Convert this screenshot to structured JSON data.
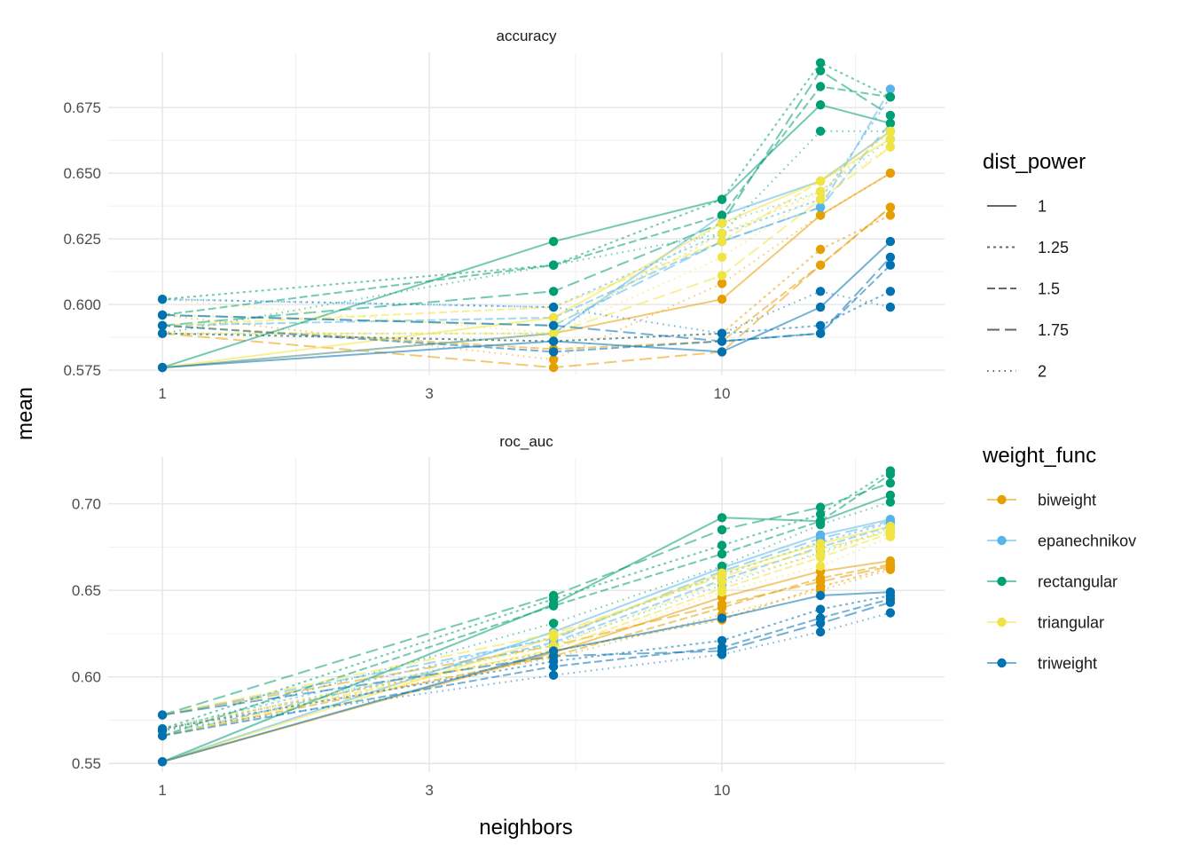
{
  "chart_data": {
    "type": "line",
    "x_label": "neighbors",
    "y_label": "mean",
    "x_scale": "log10",
    "x_ticks": [
      1,
      3,
      10
    ],
    "x_values": [
      1,
      5,
      10,
      15,
      20
    ],
    "grid": true,
    "legend_position": "right",
    "colors": {
      "biweight": "#E69F00",
      "epanechnikov": "#56B4E9",
      "rectangular": "#009E73",
      "triangular": "#F0E442",
      "triweight": "#0072B2"
    },
    "legend": {
      "dist_power": {
        "title": "dist_power",
        "items": [
          "1",
          "1.25",
          "1.5",
          "1.75",
          "2"
        ]
      },
      "weight_func": {
        "title": "weight_func",
        "items": [
          "biweight",
          "epanechnikov",
          "rectangular",
          "triangular",
          "triweight"
        ]
      }
    },
    "panels": [
      {
        "title": "accuracy",
        "ylim": [
          0.573,
          0.696
        ],
        "y_ticks": [
          0.575,
          0.6,
          0.625,
          0.65,
          0.675
        ],
        "y_tick_labels": [
          "0.575",
          "0.600",
          "0.625",
          "0.650",
          "0.675"
        ],
        "series": [
          {
            "weight_func": "biweight",
            "dist_power": "1",
            "values": [
              0.576,
              0.589,
              0.602,
              0.634,
              0.65
            ]
          },
          {
            "weight_func": "biweight",
            "dist_power": "1.25",
            "values": [
              0.589,
              0.586,
              0.589,
              0.621,
              0.634
            ]
          },
          {
            "weight_func": "biweight",
            "dist_power": "1.5",
            "values": [
              0.592,
              0.583,
              0.586,
              0.615,
              0.637
            ]
          },
          {
            "weight_func": "biweight",
            "dist_power": "1.75",
            "values": [
              0.589,
              0.576,
              0.582,
              0.615,
              0.637
            ]
          },
          {
            "weight_func": "biweight",
            "dist_power": "2",
            "values": [
              0.596,
              0.579,
              0.608,
              0.634,
              0.65
            ]
          },
          {
            "weight_func": "epanechnikov",
            "dist_power": "1",
            "values": [
              0.576,
              0.589,
              0.634,
              0.647,
              0.666
            ]
          },
          {
            "weight_func": "epanechnikov",
            "dist_power": "1.25",
            "values": [
              0.602,
              0.599,
              0.627,
              0.64,
              0.679
            ]
          },
          {
            "weight_func": "epanechnikov",
            "dist_power": "1.5",
            "values": [
              0.592,
              0.595,
              0.624,
              0.637,
              0.682
            ]
          },
          {
            "weight_func": "epanechnikov",
            "dist_power": "1.75",
            "values": [
              0.596,
              0.592,
              0.624,
              0.637,
              0.669
            ]
          },
          {
            "weight_func": "epanechnikov",
            "dist_power": "2",
            "values": [
              0.589,
              0.589,
              0.631,
              0.643,
              0.663
            ]
          },
          {
            "weight_func": "rectangular",
            "dist_power": "1",
            "values": [
              0.576,
              0.624,
              0.64,
              0.676,
              0.669
            ]
          },
          {
            "weight_func": "rectangular",
            "dist_power": "1.25",
            "values": [
              0.602,
              0.615,
              0.64,
              0.692,
              0.679
            ]
          },
          {
            "weight_func": "rectangular",
            "dist_power": "1.5",
            "values": [
              0.596,
              0.615,
              0.634,
              0.683,
              0.679
            ]
          },
          {
            "weight_func": "rectangular",
            "dist_power": "1.75",
            "values": [
              0.592,
              0.605,
              0.631,
              0.689,
              0.672
            ]
          },
          {
            "weight_func": "rectangular",
            "dist_power": "2",
            "values": [
              0.589,
              0.615,
              0.627,
              0.666,
              0.666
            ]
          },
          {
            "weight_func": "triangular",
            "dist_power": "1",
            "values": [
              0.576,
              0.595,
              0.631,
              0.647,
              0.663
            ]
          },
          {
            "weight_func": "triangular",
            "dist_power": "1.25",
            "values": [
              0.596,
              0.592,
              0.627,
              0.643,
              0.666
            ]
          },
          {
            "weight_func": "triangular",
            "dist_power": "1.5",
            "values": [
              0.592,
              0.599,
              0.624,
              0.647,
              0.666
            ]
          },
          {
            "weight_func": "triangular",
            "dist_power": "1.75",
            "values": [
              0.589,
              0.589,
              0.611,
              0.64,
              0.66
            ]
          },
          {
            "weight_func": "triangular",
            "dist_power": "2",
            "values": [
              0.602,
              0.589,
              0.618,
              0.643,
              0.66
            ]
          },
          {
            "weight_func": "triweight",
            "dist_power": "1",
            "values": [
              0.576,
              0.586,
              0.582,
              0.599,
              0.624
            ]
          },
          {
            "weight_func": "triweight",
            "dist_power": "1.25",
            "values": [
              0.589,
              0.586,
              0.589,
              0.592,
              0.605
            ]
          },
          {
            "weight_func": "triweight",
            "dist_power": "1.5",
            "values": [
              0.592,
              0.582,
              0.586,
              0.589,
              0.615
            ]
          },
          {
            "weight_func": "triweight",
            "dist_power": "1.75",
            "values": [
              0.596,
              0.592,
              0.586,
              0.589,
              0.618
            ]
          },
          {
            "weight_func": "triweight",
            "dist_power": "2",
            "values": [
              0.602,
              0.599,
              0.589,
              0.605,
              0.599
            ]
          }
        ]
      },
      {
        "title": "roc_auc",
        "ylim": [
          0.545,
          0.727
        ],
        "y_ticks": [
          0.55,
          0.6,
          0.65,
          0.7
        ],
        "y_tick_labels": [
          "0.55",
          "0.60",
          "0.65",
          "0.70"
        ],
        "series": [
          {
            "weight_func": "biweight",
            "dist_power": "1",
            "values": [
              0.551,
              0.614,
              0.646,
              0.661,
              0.667
            ]
          },
          {
            "weight_func": "biweight",
            "dist_power": "1.25",
            "values": [
              0.57,
              0.615,
              0.633,
              0.652,
              0.663
            ]
          },
          {
            "weight_func": "biweight",
            "dist_power": "1.5",
            "values": [
              0.566,
              0.612,
              0.64,
              0.657,
              0.665
            ]
          },
          {
            "weight_func": "biweight",
            "dist_power": "1.75",
            "values": [
              0.578,
              0.618,
              0.642,
              0.655,
              0.664
            ]
          },
          {
            "weight_func": "biweight",
            "dist_power": "2",
            "values": [
              0.569,
              0.611,
              0.636,
              0.65,
              0.662
            ]
          },
          {
            "weight_func": "epanechnikov",
            "dist_power": "1",
            "values": [
              0.551,
              0.626,
              0.663,
              0.682,
              0.691
            ]
          },
          {
            "weight_func": "epanechnikov",
            "dist_power": "1.25",
            "values": [
              0.57,
              0.623,
              0.659,
              0.678,
              0.689
            ]
          },
          {
            "weight_func": "epanechnikov",
            "dist_power": "1.5",
            "values": [
              0.566,
              0.62,
              0.656,
              0.675,
              0.687
            ]
          },
          {
            "weight_func": "epanechnikov",
            "dist_power": "1.75",
            "values": [
              0.578,
              0.622,
              0.661,
              0.68,
              0.69
            ]
          },
          {
            "weight_func": "epanechnikov",
            "dist_power": "2",
            "values": [
              0.569,
              0.619,
              0.653,
              0.672,
              0.686
            ]
          },
          {
            "weight_func": "rectangular",
            "dist_power": "1",
            "values": [
              0.551,
              0.642,
              0.692,
              0.69,
              0.705
            ]
          },
          {
            "weight_func": "rectangular",
            "dist_power": "1.25",
            "values": [
              0.57,
              0.645,
              0.676,
              0.694,
              0.719
            ]
          },
          {
            "weight_func": "rectangular",
            "dist_power": "1.5",
            "values": [
              0.566,
              0.641,
              0.671,
              0.69,
              0.717
            ]
          },
          {
            "weight_func": "rectangular",
            "dist_power": "1.75",
            "values": [
              0.578,
              0.647,
              0.685,
              0.698,
              0.712
            ]
          },
          {
            "weight_func": "rectangular",
            "dist_power": "2",
            "values": [
              0.569,
              0.631,
              0.664,
              0.688,
              0.701
            ]
          },
          {
            "weight_func": "triangular",
            "dist_power": "1",
            "values": [
              0.551,
              0.623,
              0.66,
              0.677,
              0.687
            ]
          },
          {
            "weight_func": "triangular",
            "dist_power": "1.25",
            "values": [
              0.57,
              0.618,
              0.655,
              0.671,
              0.685
            ]
          },
          {
            "weight_func": "triangular",
            "dist_power": "1.5",
            "values": [
              0.566,
              0.616,
              0.651,
              0.669,
              0.683
            ]
          },
          {
            "weight_func": "triangular",
            "dist_power": "1.75",
            "values": [
              0.578,
              0.625,
              0.658,
              0.674,
              0.684
            ]
          },
          {
            "weight_func": "triangular",
            "dist_power": "2",
            "values": [
              0.569,
              0.614,
              0.649,
              0.664,
              0.681
            ]
          },
          {
            "weight_func": "triweight",
            "dist_power": "1",
            "values": [
              0.551,
              0.615,
              0.634,
              0.647,
              0.649
            ]
          },
          {
            "weight_func": "triweight",
            "dist_power": "1.25",
            "values": [
              0.57,
              0.609,
              0.621,
              0.639,
              0.647
            ]
          },
          {
            "weight_func": "triweight",
            "dist_power": "1.5",
            "values": [
              0.566,
              0.606,
              0.617,
              0.634,
              0.645
            ]
          },
          {
            "weight_func": "triweight",
            "dist_power": "1.75",
            "values": [
              0.578,
              0.612,
              0.615,
              0.631,
              0.643
            ]
          },
          {
            "weight_func": "triweight",
            "dist_power": "2",
            "values": [
              0.569,
              0.601,
              0.613,
              0.626,
              0.637
            ]
          }
        ]
      }
    ]
  }
}
